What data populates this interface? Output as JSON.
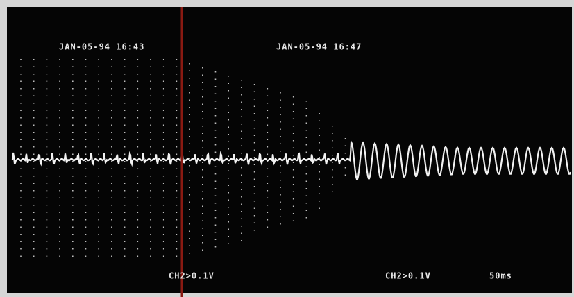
{
  "screen": {
    "timestamps": [
      "JAN-05-94 16:43",
      "JAN-05-94 16:47"
    ],
    "channel_labels": [
      "CH2>0.1V",
      "CH2>0.1V"
    ],
    "timebase": "50ms"
  }
}
